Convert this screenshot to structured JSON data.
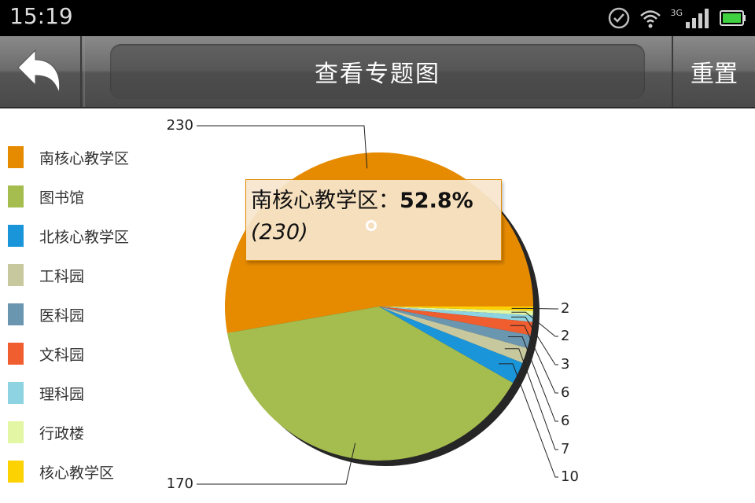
{
  "status_bar": {
    "time": "15:19",
    "network": "3G"
  },
  "header": {
    "title": "查看专题图",
    "reset_label": "重置"
  },
  "tooltip": {
    "label": "南核心教学区",
    "percent": "52.8%",
    "value": "(230)"
  },
  "colors": {
    "南核心教学区": "#e68a00",
    "图书馆": "#a5bc4e",
    "北核心教学区": "#1b95d9",
    "工科园": "#c7c89e",
    "医科园": "#6b96b0",
    "文科园": "#f05d2e",
    "理科园": "#8dd3e2",
    "行政楼": "#e3f6a3",
    "核心教学区": "#fcd202"
  },
  "chart_data": {
    "type": "pie",
    "title": "",
    "categories": [
      "南核心教学区",
      "图书馆",
      "北核心教学区",
      "工科园",
      "医科园",
      "文科园",
      "理科园",
      "行政楼",
      "核心教学区"
    ],
    "values": [
      230,
      170,
      10,
      7,
      6,
      6,
      3,
      2,
      2
    ],
    "legend_position": "left",
    "highlighted": "南核心教学区"
  },
  "data_labels": [
    "230",
    "170",
    "10",
    "7",
    "6",
    "6",
    "3",
    "2",
    "2"
  ]
}
